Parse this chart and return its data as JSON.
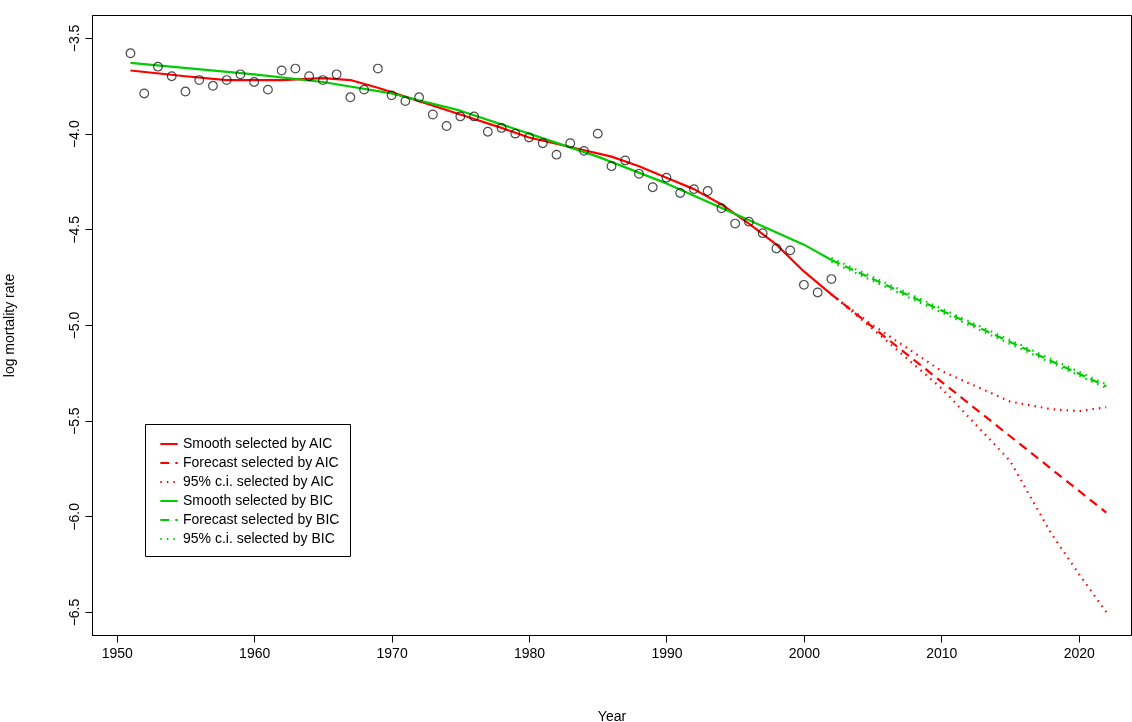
{
  "chart_data": {
    "type": "line",
    "xlabel": "Year",
    "ylabel": "log mortality rate",
    "xlim": [
      1948.2,
      2023.8
    ],
    "ylim": [
      -6.62,
      -3.38
    ],
    "xticks": [
      1950,
      1960,
      1970,
      1980,
      1990,
      2000,
      2010,
      2020
    ],
    "yticks": [
      {
        "value": -3.5,
        "label": "−3.5"
      },
      {
        "value": -4,
        "label": "−4.0"
      },
      {
        "value": -4.5,
        "label": "−4.5"
      },
      {
        "value": -5,
        "label": "−5.0"
      },
      {
        "value": -5.5,
        "label": "−5.5"
      },
      {
        "value": -6,
        "label": "−6.0"
      },
      {
        "value": -6.5,
        "label": "−6.5"
      }
    ],
    "grid": false,
    "legend": "bottom left",
    "series": [
      {
        "type": "scatter",
        "marker": "circle",
        "color": "#000000",
        "x": [
          1951,
          1952,
          1953,
          1954,
          1955,
          1956,
          1957,
          1958,
          1959,
          1960,
          1961,
          1962,
          1963,
          1964,
          1965,
          1966,
          1967,
          1968,
          1969,
          1970,
          1971,
          1972,
          1973,
          1974,
          1975,
          1976,
          1977,
          1978,
          1979,
          1980,
          1981,
          1982,
          1983,
          1984,
          1985,
          1986,
          1987,
          1988,
          1989,
          1990,
          1991,
          1992,
          1993,
          1994,
          1995,
          1996,
          1997,
          1998,
          1999,
          2000,
          2001,
          2002
        ],
        "values": [
          -3.58,
          -3.79,
          -3.65,
          -3.7,
          -3.78,
          -3.72,
          -3.75,
          -3.72,
          -3.69,
          -3.73,
          -3.77,
          -3.67,
          -3.66,
          -3.7,
          -3.72,
          -3.69,
          -3.81,
          -3.77,
          -3.66,
          -3.8,
          -3.83,
          -3.81,
          -3.9,
          -3.96,
          -3.91,
          -3.91,
          -3.99,
          -3.97,
          -4.0,
          -4.02,
          -4.05,
          -4.11,
          -4.05,
          -4.09,
          -4.0,
          -4.17,
          -4.14,
          -4.21,
          -4.28,
          -4.23,
          -4.31,
          -4.29,
          -4.3,
          -4.39,
          -4.47,
          -4.46,
          -4.52,
          -4.6,
          -4.61,
          -4.79,
          -4.83,
          -4.76
        ]
      },
      {
        "name": "Smooth selected by AIC",
        "color": "#ff0000",
        "line_style": "solid",
        "x": [
          1951,
          1955,
          1958,
          1962,
          1965,
          1967,
          1969,
          1972,
          1975,
          1978,
          1980,
          1983,
          1986,
          1988,
          1990,
          1992,
          1994,
          1996,
          1998,
          2000,
          2002
        ],
        "values": [
          -3.67,
          -3.7,
          -3.72,
          -3.72,
          -3.71,
          -3.72,
          -3.76,
          -3.83,
          -3.9,
          -3.97,
          -4.02,
          -4.07,
          -4.12,
          -4.17,
          -4.23,
          -4.29,
          -4.37,
          -4.47,
          -4.58,
          -4.72,
          -4.84
        ]
      },
      {
        "name": "Forecast selected by AIC",
        "color": "#ff0000",
        "line_style": "dashed",
        "x": [
          2002,
          2012,
          2022
        ],
        "values": [
          -4.84,
          -5.41,
          -5.98
        ]
      },
      {
        "name": "95% c.i. selected by AIC",
        "color": "#ff0000",
        "line_style": "dotted",
        "x": [
          2002,
          2005,
          2010,
          2015,
          2018,
          2020,
          2022
        ],
        "values": [
          -4.84,
          -5.0,
          -5.24,
          -5.4,
          -5.44,
          -5.45,
          -5.43
        ]
      },
      {
        "color": "#ff0000",
        "line_style": "dotted",
        "x": [
          2002,
          2005,
          2010,
          2015,
          2018,
          2020,
          2022
        ],
        "values": [
          -4.84,
          -5.02,
          -5.33,
          -5.71,
          -6.09,
          -6.3,
          -6.5
        ]
      },
      {
        "name": "Smooth selected by BIC",
        "color": "#00cd00",
        "line_style": "solid",
        "x": [
          1951,
          1960,
          1965,
          1970,
          1975,
          1980,
          1985,
          1990,
          1995,
          2000,
          2002
        ],
        "values": [
          -3.63,
          -3.69,
          -3.73,
          -3.79,
          -3.88,
          -4.0,
          -4.12,
          -4.26,
          -4.42,
          -4.58,
          -4.66
        ]
      },
      {
        "name": "Forecast selected by BIC",
        "color": "#00cd00",
        "line_style": "dashed",
        "x": [
          2002,
          2012,
          2022
        ],
        "values": [
          -4.66,
          -4.99,
          -5.32
        ]
      },
      {
        "name": "95% c.i. selected by BIC",
        "color": "#00cd00",
        "line_style": "dotted",
        "x": [
          2002,
          2012,
          2022
        ],
        "values": [
          -4.65,
          -4.98,
          -5.31
        ]
      },
      {
        "color": "#00cd00",
        "line_style": "dotted",
        "x": [
          2002,
          2012,
          2022
        ],
        "values": [
          -4.67,
          -5.0,
          -5.33
        ]
      }
    ]
  }
}
